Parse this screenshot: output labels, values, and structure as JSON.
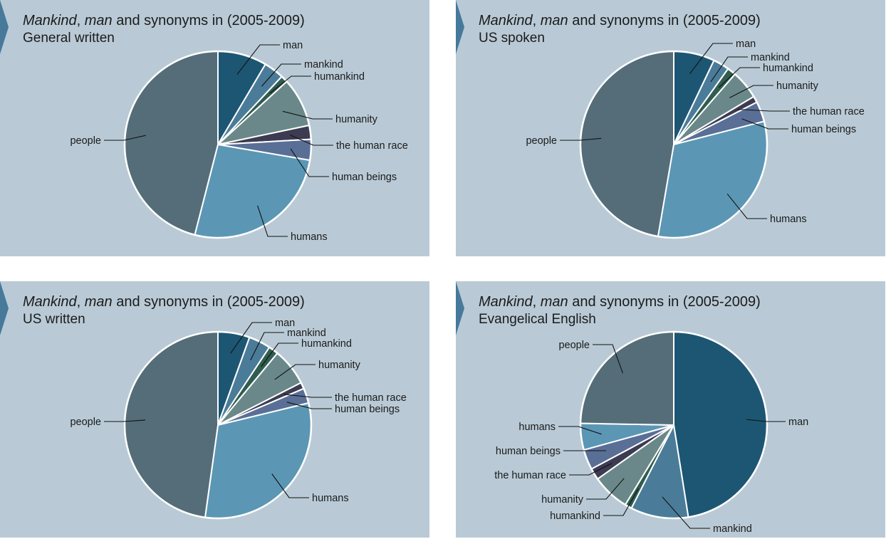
{
  "title_italic_1": "Mankind",
  "title_sep": ",",
  "title_italic_2": "man",
  "title_rest": "and synonyms in (2005-2009)",
  "colors": {
    "panel_bg": "#b9cad6",
    "notch": "#46799a",
    "man": "#1d5673",
    "mankind": "#4a7c99",
    "humankind": "#2f5d50",
    "humanity": "#6a8889",
    "the human race": "#3c3b52",
    "human beings": "#5a6f96",
    "humans": "#5b97b4",
    "people": "#546d79"
  },
  "chart_data": [
    {
      "type": "pie",
      "subtitle": "General written",
      "slices": [
        {
          "label": "man",
          "value": 8.5
        },
        {
          "label": "mankind",
          "value": 3.5
        },
        {
          "label": "humankind",
          "value": 1.2
        },
        {
          "label": "humanity",
          "value": 8.5
        },
        {
          "label": "the human race",
          "value": 2.4
        },
        {
          "label": "human beings",
          "value": 3.6
        },
        {
          "label": "humans",
          "value": 26.3
        },
        {
          "label": "people",
          "value": 46.0
        }
      ]
    },
    {
      "type": "pie",
      "subtitle": "US spoken",
      "slices": [
        {
          "label": "man",
          "value": 7.1
        },
        {
          "label": "mankind",
          "value": 2.8
        },
        {
          "label": "humankind",
          "value": 1.5
        },
        {
          "label": "humanity",
          "value": 5.0
        },
        {
          "label": "the human race",
          "value": 1.1
        },
        {
          "label": "human beings",
          "value": 3.5
        },
        {
          "label": "humans",
          "value": 31.7
        },
        {
          "label": "people",
          "value": 47.3
        }
      ]
    },
    {
      "type": "pie",
      "subtitle": "US written",
      "slices": [
        {
          "label": "man",
          "value": 5.5
        },
        {
          "label": "mankind",
          "value": 3.8
        },
        {
          "label": "humankind",
          "value": 1.7
        },
        {
          "label": "humanity",
          "value": 6.5
        },
        {
          "label": "the human race",
          "value": 1.1
        },
        {
          "label": "human beings",
          "value": 2.6
        },
        {
          "label": "humans",
          "value": 31.0
        },
        {
          "label": "people",
          "value": 47.8
        }
      ]
    },
    {
      "type": "pie",
      "subtitle": "Evangelical English",
      "slices": [
        {
          "label": "man",
          "value": 47.5
        },
        {
          "label": "mankind",
          "value": 10.0
        },
        {
          "label": "humankind",
          "value": 1.2
        },
        {
          "label": "humanity",
          "value": 6.5
        },
        {
          "label": "the human race",
          "value": 2.0
        },
        {
          "label": "human beings",
          "value": 3.5
        },
        {
          "label": "humans",
          "value": 4.6
        },
        {
          "label": "people",
          "value": 24.7
        }
      ]
    }
  ]
}
